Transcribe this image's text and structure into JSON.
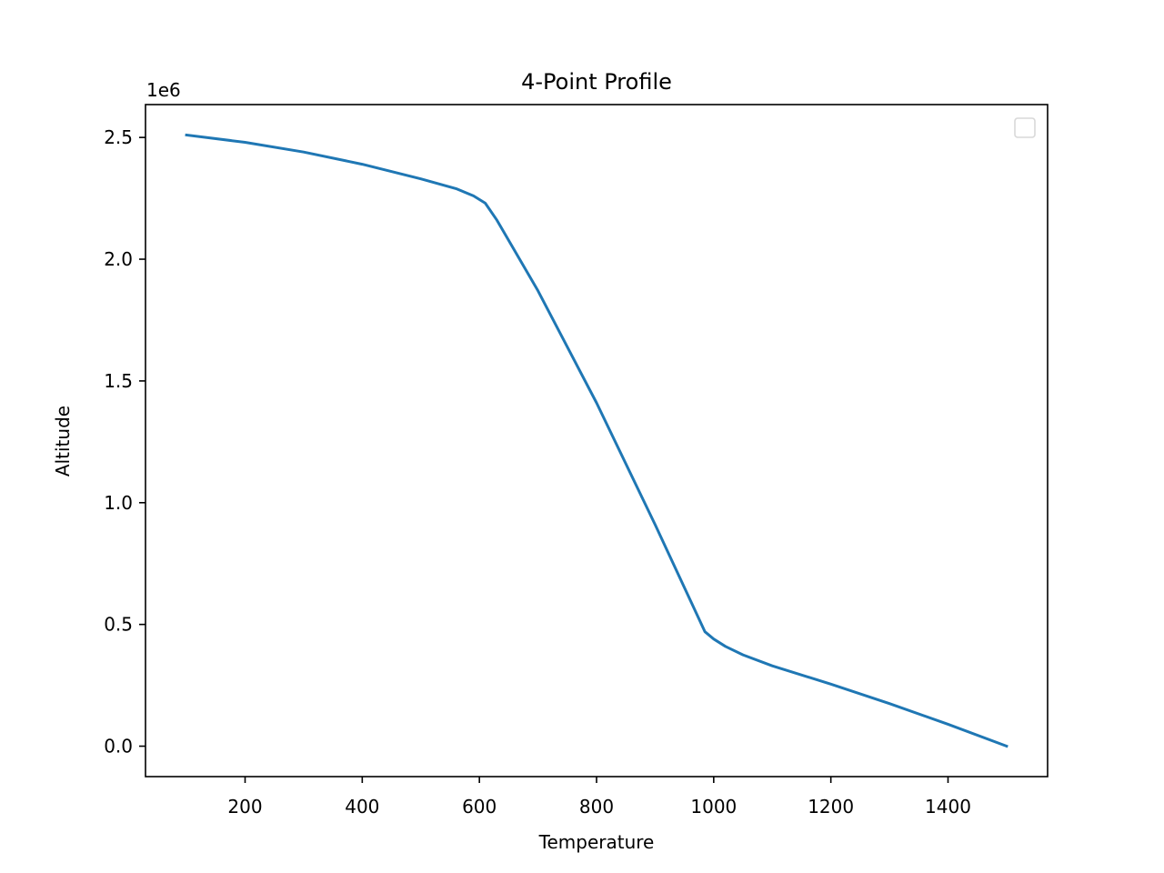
{
  "chart_data": {
    "type": "line",
    "title": "4-Point Profile",
    "xlabel": "Temperature",
    "ylabel": "Altitude",
    "y_multiplier_label": "1e6",
    "xlim": [
      30,
      1570
    ],
    "ylim": [
      -0.125,
      2.635
    ],
    "x_ticks": [
      200,
      400,
      600,
      800,
      1000,
      1200,
      1400
    ],
    "x_tick_labels": [
      "200",
      "400",
      "600",
      "800",
      "1000",
      "1200",
      "1400"
    ],
    "y_ticks": [
      0.0,
      0.5,
      1.0,
      1.5,
      2.0,
      2.5
    ],
    "y_tick_labels": [
      "0.0",
      "0.5",
      "1.0",
      "1.5",
      "2.0",
      "2.5"
    ],
    "grid": false,
    "legend": {
      "placement": "top-right",
      "entries": []
    },
    "series": [
      {
        "color": "#1f77b4",
        "x": [
          100,
          200,
          300,
          400,
          500,
          560,
          590,
          610,
          630,
          700,
          800,
          900,
          985,
          1000,
          1020,
          1050,
          1100,
          1200,
          1300,
          1400,
          1500
        ],
        "y": [
          2.51,
          2.48,
          2.44,
          2.39,
          2.33,
          2.29,
          2.26,
          2.23,
          2.16,
          1.87,
          1.41,
          0.91,
          0.47,
          0.44,
          0.41,
          0.375,
          0.33,
          0.255,
          0.175,
          0.09,
          0.0
        ]
      }
    ]
  }
}
